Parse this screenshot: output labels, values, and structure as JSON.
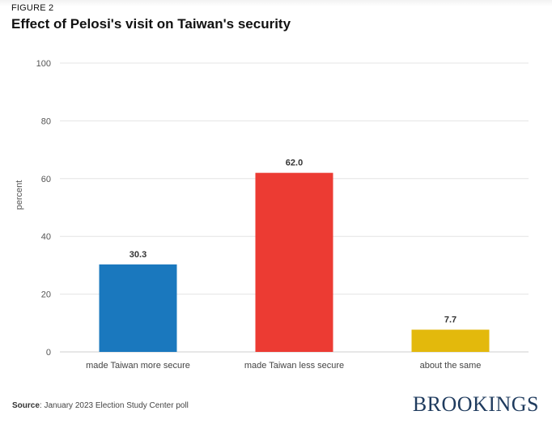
{
  "figure_label": "FIGURE 2",
  "title": "Effect of Pelosi's visit on Taiwan's security",
  "source": {
    "prefix": "Source",
    "text": ": January 2023 Election Study Center poll"
  },
  "brand": "BROOKINGS",
  "colors": {
    "bars": [
      "#1a78be",
      "#ec3b33",
      "#e3b90c"
    ]
  },
  "chart_data": {
    "type": "bar",
    "title": "Effect of Pelosi's visit on Taiwan's security",
    "xlabel": "",
    "ylabel": "percent",
    "categories": [
      "made Taiwan more secure",
      "made Taiwan less secure",
      "about the same"
    ],
    "values": [
      30.3,
      62.0,
      7.7
    ],
    "value_labels": [
      "30.3",
      "62.0",
      "7.7"
    ],
    "ylim": [
      0,
      100
    ],
    "yticks": [
      0,
      20,
      40,
      60,
      80,
      100
    ],
    "grid": true,
    "legend": "none"
  }
}
